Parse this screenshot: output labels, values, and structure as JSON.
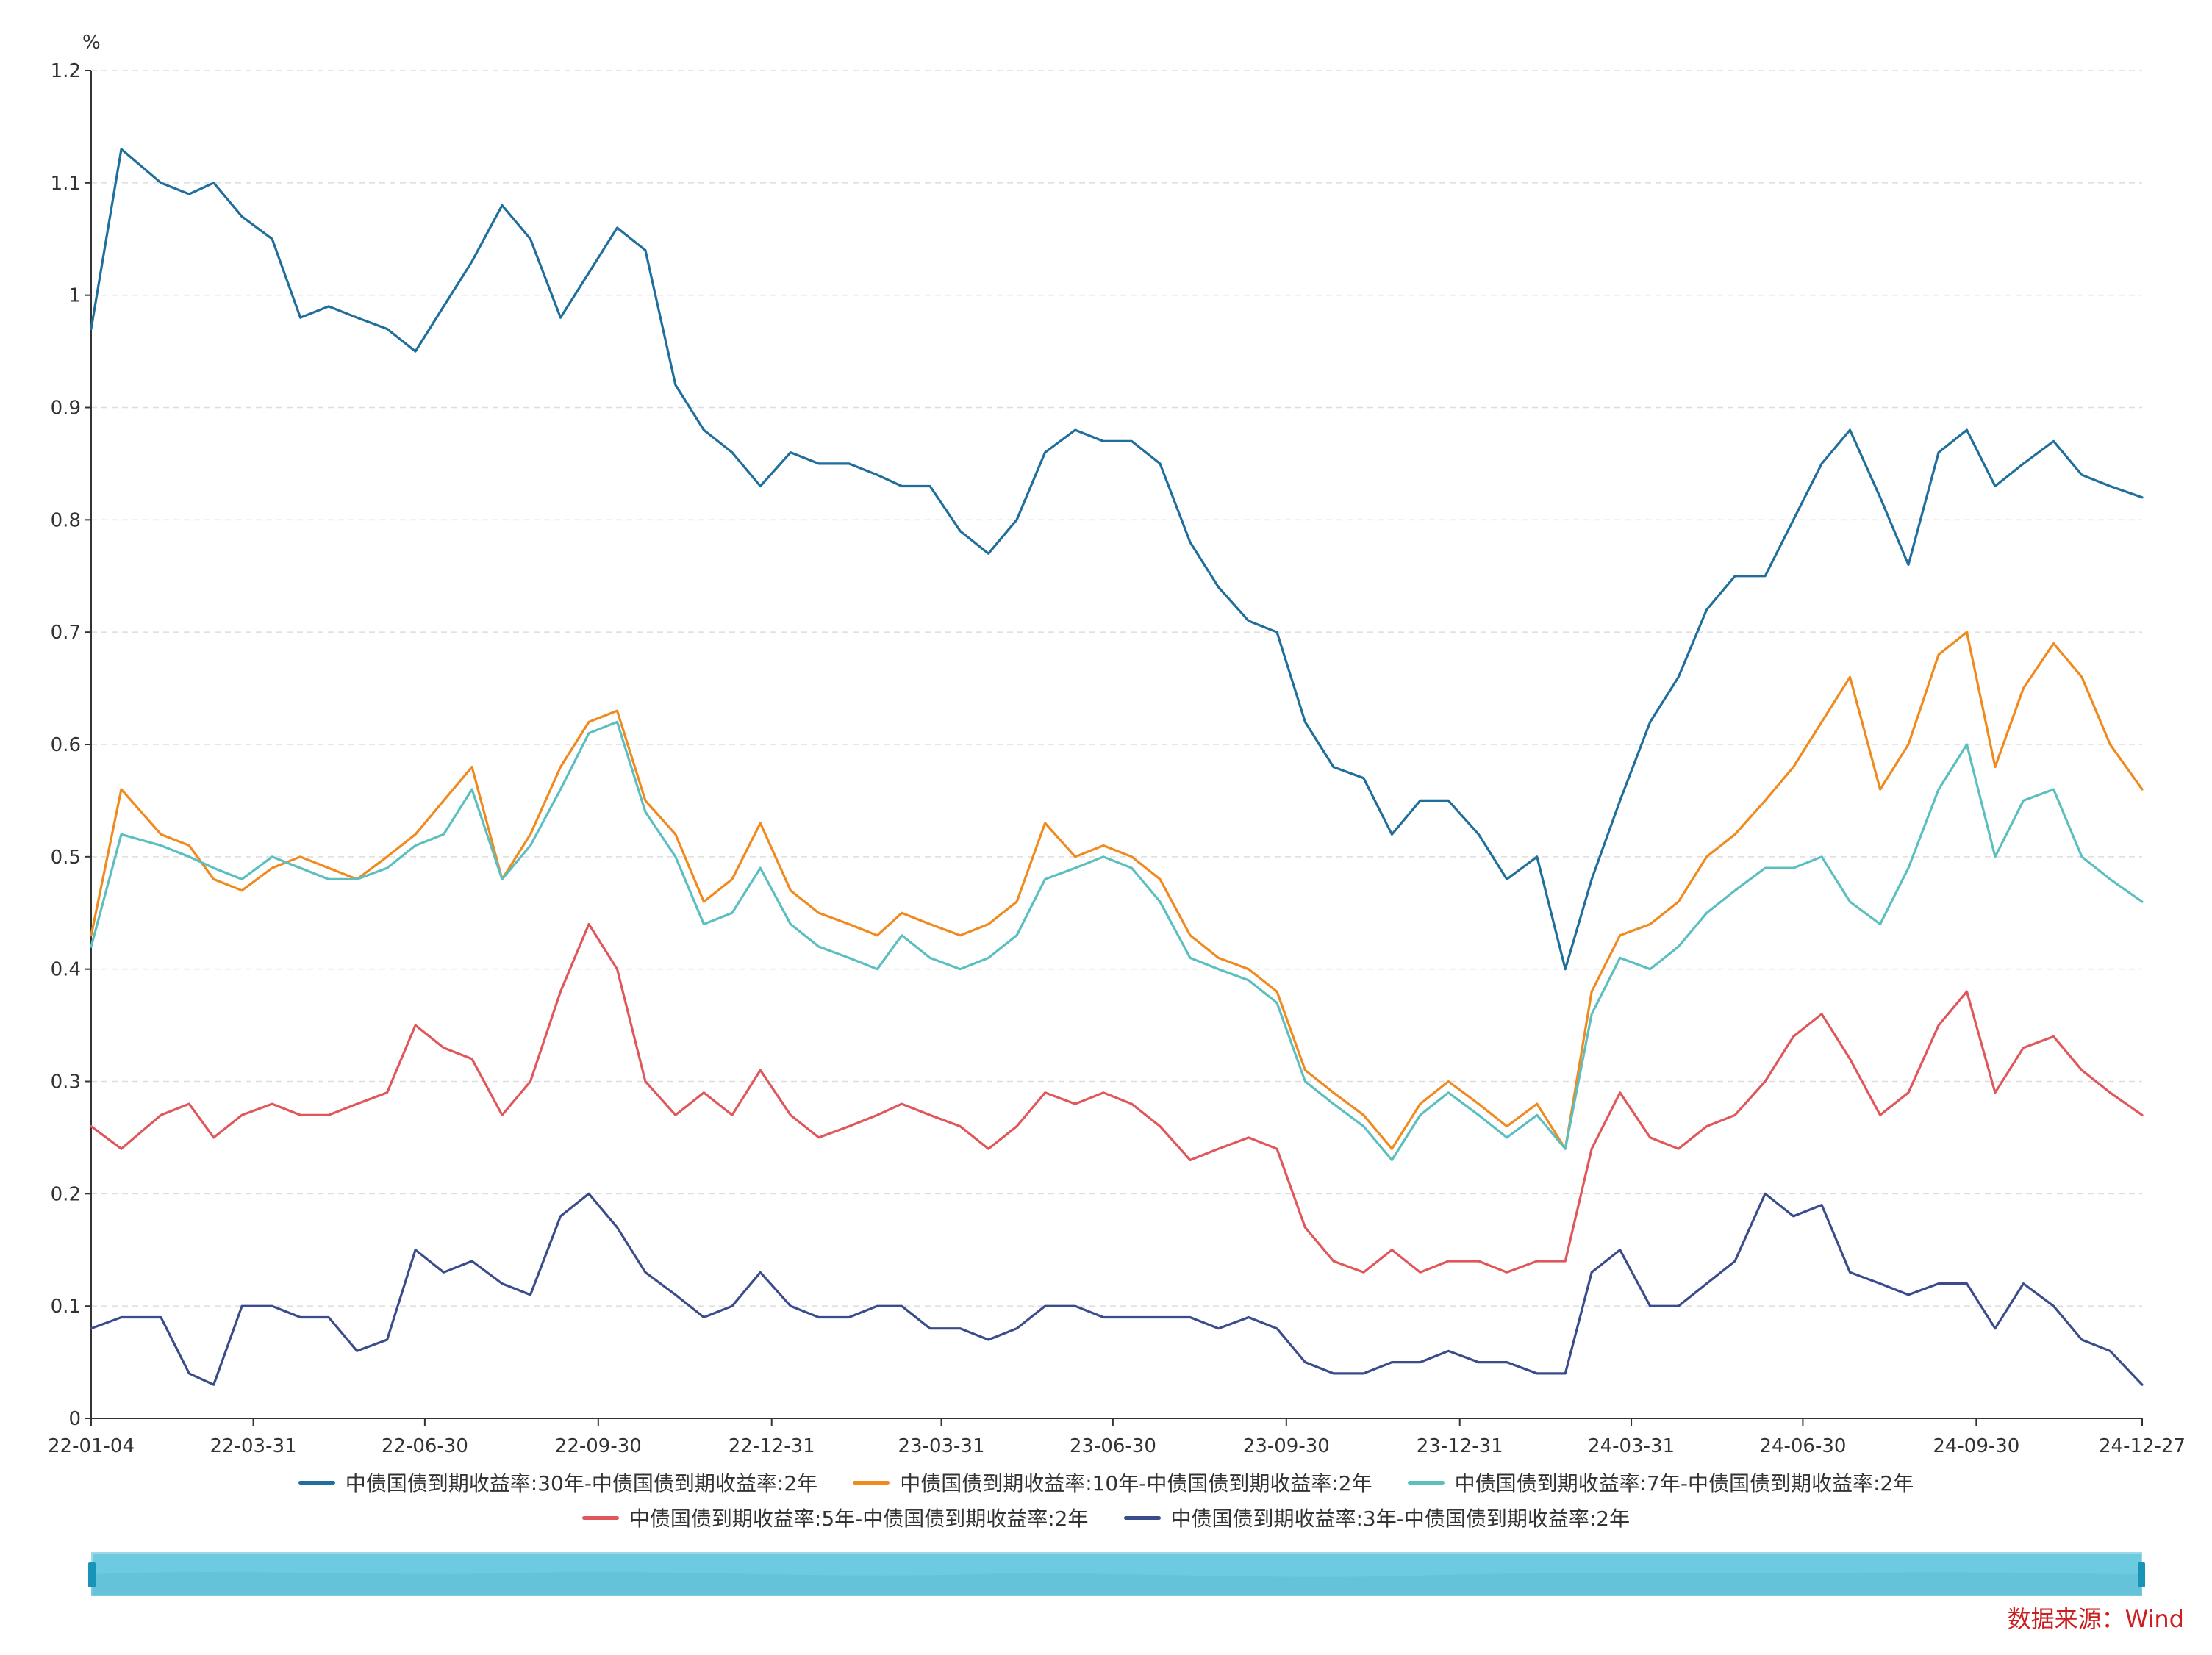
{
  "chart_data": {
    "type": "line",
    "unit": "%",
    "ylim": [
      0,
      1.2
    ],
    "yticks": [
      0,
      0.1,
      0.2,
      0.3,
      0.4,
      0.5,
      0.6,
      0.7,
      0.8,
      0.9,
      1,
      1.1,
      1.2
    ],
    "xlim": [
      "2022-01-04",
      "2024-12-27"
    ],
    "xticks": [
      {
        "date": "2022-01-04",
        "label": "22-01-04"
      },
      {
        "date": "2022-03-31",
        "label": "22-03-31"
      },
      {
        "date": "2022-06-30",
        "label": "22-06-30"
      },
      {
        "date": "2022-09-30",
        "label": "22-09-30"
      },
      {
        "date": "2022-12-31",
        "label": "22-12-31"
      },
      {
        "date": "2023-03-31",
        "label": "23-03-31"
      },
      {
        "date": "2023-06-30",
        "label": "23-06-30"
      },
      {
        "date": "2023-09-30",
        "label": "23-09-30"
      },
      {
        "date": "2023-12-31",
        "label": "23-12-31"
      },
      {
        "date": "2024-03-31",
        "label": "24-03-31"
      },
      {
        "date": "2024-06-30",
        "label": "24-06-30"
      },
      {
        "date": "2024-09-30",
        "label": "24-09-30"
      },
      {
        "date": "2024-12-27",
        "label": "24-12-27"
      }
    ],
    "grid": true,
    "legend_position": "bottom",
    "x": [
      "2022-01-04",
      "2022-01-20",
      "2022-02-10",
      "2022-02-25",
      "2022-03-10",
      "2022-03-25",
      "2022-04-10",
      "2022-04-25",
      "2022-05-10",
      "2022-05-25",
      "2022-06-10",
      "2022-06-25",
      "2022-07-10",
      "2022-07-25",
      "2022-08-10",
      "2022-08-25",
      "2022-09-10",
      "2022-09-25",
      "2022-10-10",
      "2022-10-25",
      "2022-11-10",
      "2022-11-25",
      "2022-12-10",
      "2022-12-25",
      "2023-01-10",
      "2023-01-25",
      "2023-02-10",
      "2023-02-25",
      "2023-03-10",
      "2023-03-25",
      "2023-04-10",
      "2023-04-25",
      "2023-05-10",
      "2023-05-25",
      "2023-06-10",
      "2023-06-25",
      "2023-07-10",
      "2023-07-25",
      "2023-08-10",
      "2023-08-25",
      "2023-09-10",
      "2023-09-25",
      "2023-10-10",
      "2023-10-25",
      "2023-11-10",
      "2023-11-25",
      "2023-12-10",
      "2023-12-25",
      "2024-01-10",
      "2024-01-25",
      "2024-02-10",
      "2024-02-25",
      "2024-03-10",
      "2024-03-25",
      "2024-04-10",
      "2024-04-25",
      "2024-05-10",
      "2024-05-25",
      "2024-06-10",
      "2024-06-25",
      "2024-07-10",
      "2024-07-25",
      "2024-08-10",
      "2024-08-25",
      "2024-09-10",
      "2024-09-25",
      "2024-10-10",
      "2024-10-25",
      "2024-11-10",
      "2024-11-25",
      "2024-12-10",
      "2024-12-27"
    ],
    "series": [
      {
        "name": "中债国债到期收益率:30年-中债国债到期收益率:2年",
        "color": "#1f6e9c",
        "values": [
          0.97,
          1.13,
          1.1,
          1.09,
          1.1,
          1.07,
          1.05,
          0.98,
          0.99,
          0.98,
          0.97,
          0.95,
          0.99,
          1.03,
          1.08,
          1.05,
          0.98,
          1.02,
          1.06,
          1.04,
          0.92,
          0.88,
          0.86,
          0.83,
          0.86,
          0.85,
          0.85,
          0.84,
          0.83,
          0.83,
          0.79,
          0.77,
          0.8,
          0.86,
          0.88,
          0.87,
          0.87,
          0.85,
          0.78,
          0.74,
          0.71,
          0.7,
          0.62,
          0.58,
          0.57,
          0.52,
          0.55,
          0.55,
          0.52,
          0.48,
          0.5,
          0.4,
          0.48,
          0.55,
          0.62,
          0.66,
          0.72,
          0.75,
          0.75,
          0.8,
          0.85,
          0.88,
          0.82,
          0.76,
          0.86,
          0.88,
          0.83,
          0.85,
          0.87,
          0.84,
          0.83,
          0.82
        ]
      },
      {
        "name": "中债国债到期收益率:10年-中债国债到期收益率:2年",
        "color": "#f08a1e",
        "values": [
          0.43,
          0.56,
          0.52,
          0.51,
          0.48,
          0.47,
          0.49,
          0.5,
          0.49,
          0.48,
          0.5,
          0.52,
          0.55,
          0.58,
          0.48,
          0.52,
          0.58,
          0.62,
          0.63,
          0.55,
          0.52,
          0.46,
          0.48,
          0.53,
          0.47,
          0.45,
          0.44,
          0.43,
          0.45,
          0.44,
          0.43,
          0.44,
          0.46,
          0.53,
          0.5,
          0.51,
          0.5,
          0.48,
          0.43,
          0.41,
          0.4,
          0.38,
          0.31,
          0.29,
          0.27,
          0.24,
          0.28,
          0.3,
          0.28,
          0.26,
          0.28,
          0.24,
          0.38,
          0.43,
          0.44,
          0.46,
          0.5,
          0.52,
          0.55,
          0.58,
          0.62,
          0.66,
          0.56,
          0.6,
          0.68,
          0.7,
          0.58,
          0.65,
          0.69,
          0.66,
          0.6,
          0.56
        ]
      },
      {
        "name": "中债国债到期收益率:7年-中债国债到期收益率:2年",
        "color": "#5bbfc0",
        "values": [
          0.42,
          0.52,
          0.51,
          0.5,
          0.49,
          0.48,
          0.5,
          0.49,
          0.48,
          0.48,
          0.49,
          0.51,
          0.52,
          0.56,
          0.48,
          0.51,
          0.56,
          0.61,
          0.62,
          0.54,
          0.5,
          0.44,
          0.45,
          0.49,
          0.44,
          0.42,
          0.41,
          0.4,
          0.43,
          0.41,
          0.4,
          0.41,
          0.43,
          0.48,
          0.49,
          0.5,
          0.49,
          0.46,
          0.41,
          0.4,
          0.39,
          0.37,
          0.3,
          0.28,
          0.26,
          0.23,
          0.27,
          0.29,
          0.27,
          0.25,
          0.27,
          0.24,
          0.36,
          0.41,
          0.4,
          0.42,
          0.45,
          0.47,
          0.49,
          0.49,
          0.5,
          0.46,
          0.44,
          0.49,
          0.56,
          0.6,
          0.5,
          0.55,
          0.56,
          0.5,
          0.48,
          0.46
        ]
      },
      {
        "name": "中债国债到期收益率:5年-中债国债到期收益率:2年",
        "color": "#e0575b",
        "values": [
          0.26,
          0.24,
          0.27,
          0.28,
          0.25,
          0.27,
          0.28,
          0.27,
          0.27,
          0.28,
          0.29,
          0.35,
          0.33,
          0.32,
          0.27,
          0.3,
          0.38,
          0.44,
          0.4,
          0.3,
          0.27,
          0.29,
          0.27,
          0.31,
          0.27,
          0.25,
          0.26,
          0.27,
          0.28,
          0.27,
          0.26,
          0.24,
          0.26,
          0.29,
          0.28,
          0.29,
          0.28,
          0.26,
          0.23,
          0.24,
          0.25,
          0.24,
          0.17,
          0.14,
          0.13,
          0.15,
          0.13,
          0.14,
          0.14,
          0.13,
          0.14,
          0.14,
          0.24,
          0.29,
          0.25,
          0.24,
          0.26,
          0.27,
          0.3,
          0.34,
          0.36,
          0.32,
          0.27,
          0.29,
          0.35,
          0.38,
          0.29,
          0.33,
          0.34,
          0.31,
          0.29,
          0.27
        ]
      },
      {
        "name": "中债国债到期收益率:3年-中债国债到期收益率:2年",
        "color": "#3b4c8b",
        "values": [
          0.08,
          0.09,
          0.09,
          0.04,
          0.03,
          0.1,
          0.1,
          0.09,
          0.09,
          0.06,
          0.07,
          0.15,
          0.13,
          0.14,
          0.12,
          0.11,
          0.18,
          0.2,
          0.17,
          0.13,
          0.11,
          0.09,
          0.1,
          0.13,
          0.1,
          0.09,
          0.09,
          0.1,
          0.1,
          0.08,
          0.08,
          0.07,
          0.08,
          0.1,
          0.1,
          0.09,
          0.09,
          0.09,
          0.09,
          0.08,
          0.09,
          0.08,
          0.05,
          0.04,
          0.04,
          0.05,
          0.05,
          0.06,
          0.05,
          0.05,
          0.04,
          0.04,
          0.13,
          0.15,
          0.1,
          0.1,
          0.12,
          0.14,
          0.2,
          0.18,
          0.19,
          0.13,
          0.12,
          0.11,
          0.12,
          0.12,
          0.08,
          0.12,
          0.1,
          0.07,
          0.06,
          0.03
        ]
      }
    ]
  },
  "zoom": {
    "start": "22-01-04",
    "end": "24-12-27"
  },
  "source": "数据来源：Wind"
}
